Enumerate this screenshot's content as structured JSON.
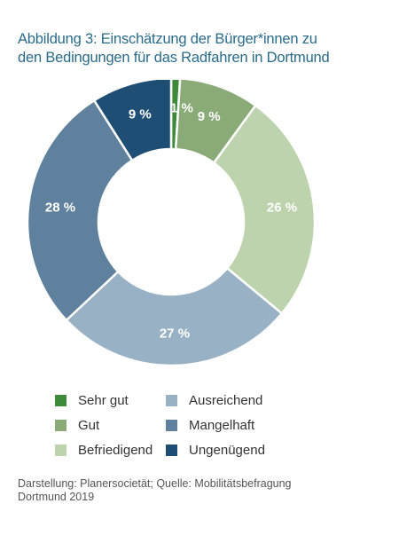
{
  "title": {
    "line1": "Abbildung 3: Einschätzung der Bürger*innen zu",
    "line2": "den Bedingungen für das Radfahren in Dortmund"
  },
  "chart_data": {
    "type": "pie",
    "donut": true,
    "categories": [
      "Sehr gut",
      "Gut",
      "Befriedigend",
      "Ausreichend",
      "Mangelhaft",
      "Ungenügend"
    ],
    "values": [
      1,
      9,
      26,
      27,
      28,
      9
    ],
    "labels": [
      "1 %",
      "9 %",
      "26 %",
      "27 %",
      "28 %",
      "9 %"
    ],
    "colors": [
      "#3f8a3a",
      "#8aab77",
      "#bcd3ad",
      "#98b1c4",
      "#60819d",
      "#1f4e74"
    ],
    "legend_position": "bottom"
  },
  "legend": {
    "items": [
      {
        "label": "Sehr gut",
        "color": "#3f8a3a"
      },
      {
        "label": "Ausreichend",
        "color": "#98b1c4"
      },
      {
        "label": "Gut",
        "color": "#8aab77"
      },
      {
        "label": "Mangelhaft",
        "color": "#60819d"
      },
      {
        "label": "Befriedigend",
        "color": "#bcd3ad"
      },
      {
        "label": "Ungenügend",
        "color": "#1f4e74"
      }
    ]
  },
  "source": {
    "line1": "Darstellung: Planersocietät; Quelle: Mobilitätsbefragung",
    "line2": "Dortmund 2019"
  }
}
